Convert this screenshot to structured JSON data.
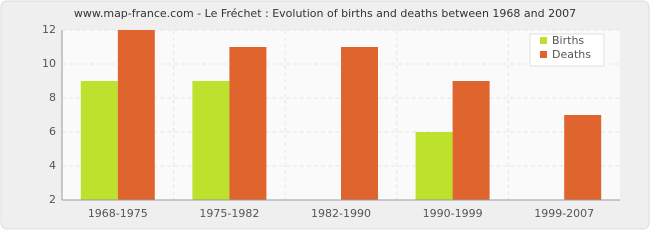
{
  "chart_data": {
    "type": "bar",
    "title": "www.map-france.com - Le Fréchet : Evolution of births and deaths between 1968 and 2007",
    "categories": [
      "1968-1975",
      "1975-1982",
      "1982-1990",
      "1990-1999",
      "1999-2007"
    ],
    "series": [
      {
        "name": "Births",
        "color": "#bde12c",
        "values": [
          9,
          9,
          2,
          6,
          2
        ]
      },
      {
        "name": "Deaths",
        "color": "#e0642e",
        "values": [
          12,
          11,
          11,
          9,
          7
        ]
      }
    ],
    "ylim": [
      2,
      12
    ],
    "yticks": [
      2,
      4,
      6,
      8,
      10,
      12
    ],
    "grid": true,
    "legend": "top-right"
  }
}
